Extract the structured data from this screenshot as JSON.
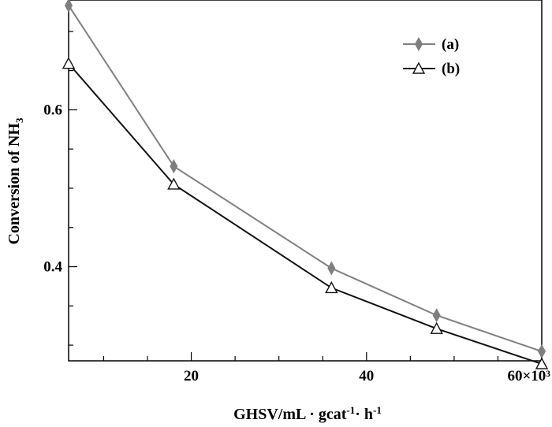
{
  "chart_data": {
    "type": "line",
    "title": "",
    "xlabel": "GHSV/mL · gcat",
    "xlabel_sup1": "-1",
    "xlabel_mid": "· h",
    "xlabel_sup2": "-1",
    "ylabel": "Conversion of NH",
    "ylabel_sub": "3",
    "xlim": [
      6,
      60
    ],
    "ylim": [
      0.28,
      0.74
    ],
    "x_ticks": [
      {
        "value": 20,
        "label": "20"
      },
      {
        "value": 40,
        "label": "40"
      },
      {
        "value": 60,
        "label": "60×10³"
      }
    ],
    "y_ticks": [
      {
        "value": 0.4,
        "label": "0.4"
      },
      {
        "value": 0.6,
        "label": "0.6"
      }
    ],
    "grid": false,
    "legend_position": "top-right",
    "series": [
      {
        "name": "(a)",
        "marker": "diamond",
        "color": "#7f7f7f",
        "x": [
          6,
          18,
          36,
          48,
          60
        ],
        "y": [
          0.733,
          0.528,
          0.398,
          0.338,
          0.292
        ]
      },
      {
        "name": "(b)",
        "marker": "triangle-open",
        "color": "#111111",
        "x": [
          6,
          18,
          36,
          48,
          60
        ],
        "y": [
          0.659,
          0.505,
          0.373,
          0.321,
          0.276
        ]
      }
    ]
  }
}
